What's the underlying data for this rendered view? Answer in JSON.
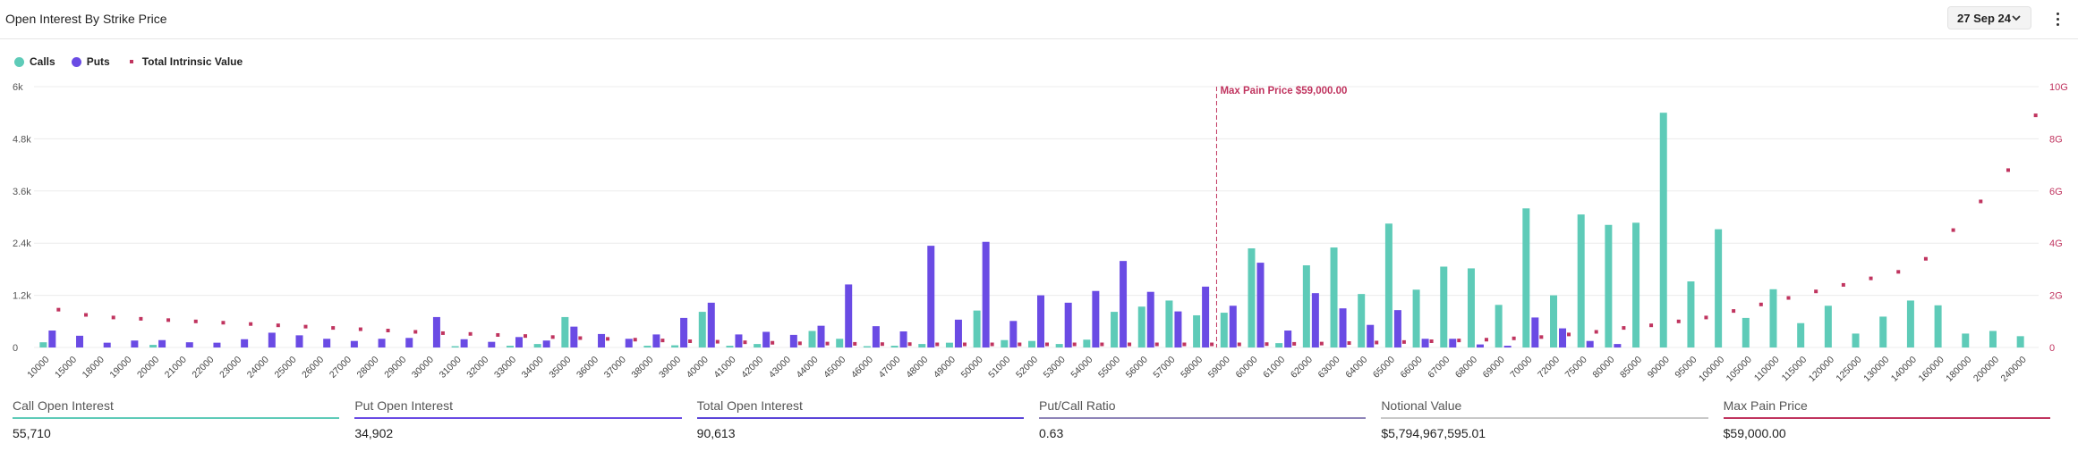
{
  "header": {
    "title": "Open Interest By Strike Price",
    "expiry": "27 Sep 24"
  },
  "legend": [
    {
      "label": "Calls",
      "color": "#5ecbb8",
      "shape": "circle"
    },
    {
      "label": "Puts",
      "color": "#6a4be4",
      "shape": "circle"
    },
    {
      "label": "Total Intrinsic Value",
      "color": "#c0345f",
      "shape": "square"
    }
  ],
  "stats": [
    {
      "label": "Call Open Interest",
      "value": "55,710",
      "color": "#5ecbb8"
    },
    {
      "label": "Put Open Interest",
      "value": "34,902",
      "color": "#6a4be4"
    },
    {
      "label": "Total Open Interest",
      "value": "90,613",
      "color": "#5b45d8"
    },
    {
      "label": "Put/Call Ratio",
      "value": "0.63",
      "color": "#8e84b8"
    },
    {
      "label": "Notional Value",
      "value": "$5,794,967,595.01",
      "color": "#c8c8c8"
    },
    {
      "label": "Max Pain Price",
      "value": "$59,000.00",
      "color": "#c0345f"
    }
  ],
  "chart_data": {
    "type": "bar",
    "categories": [
      "10000",
      "15000",
      "18000",
      "19000",
      "20000",
      "21000",
      "22000",
      "23000",
      "24000",
      "25000",
      "26000",
      "27000",
      "28000",
      "29000",
      "30000",
      "31000",
      "32000",
      "33000",
      "34000",
      "35000",
      "36000",
      "37000",
      "38000",
      "39000",
      "40000",
      "41000",
      "42000",
      "43000",
      "44000",
      "45000",
      "46000",
      "47000",
      "48000",
      "49000",
      "50000",
      "51000",
      "52000",
      "53000",
      "54000",
      "55000",
      "56000",
      "57000",
      "58000",
      "59000",
      "60000",
      "61000",
      "62000",
      "63000",
      "64000",
      "65000",
      "66000",
      "67000",
      "68000",
      "69000",
      "70000",
      "72000",
      "75000",
      "80000",
      "85000",
      "90000",
      "95000",
      "100000",
      "105000",
      "110000",
      "115000",
      "120000",
      "125000",
      "130000",
      "140000",
      "160000",
      "180000",
      "200000",
      "240000"
    ],
    "series": [
      {
        "name": "Calls",
        "axis": "left",
        "values": [
          120,
          0,
          0,
          0,
          60,
          0,
          0,
          0,
          0,
          0,
          0,
          0,
          0,
          0,
          0,
          30,
          0,
          40,
          80,
          700,
          0,
          0,
          40,
          50,
          820,
          40,
          80,
          0,
          380,
          200,
          30,
          40,
          80,
          110,
          850,
          170,
          150,
          80,
          180,
          820,
          940,
          1080,
          740,
          800,
          2280,
          100,
          1890,
          2300,
          1230,
          2850,
          1330,
          1860,
          1820,
          980,
          3200,
          1200,
          3060,
          2820,
          2870,
          5400,
          1520,
          2720,
          680,
          1340,
          560,
          960,
          320,
          710,
          1080,
          970,
          320,
          380,
          260
        ]
      },
      {
        "name": "Puts",
        "axis": "left",
        "values": [
          390,
          270,
          110,
          160,
          170,
          120,
          110,
          190,
          340,
          280,
          200,
          150,
          200,
          220,
          700,
          190,
          130,
          240,
          160,
          480,
          310,
          200,
          300,
          680,
          1030,
          300,
          360,
          290,
          500,
          1450,
          490,
          370,
          2340,
          640,
          2430,
          610,
          1200,
          1030,
          1300,
          1990,
          1280,
          830,
          1400,
          960,
          1950,
          390,
          1250,
          900,
          520,
          860,
          200,
          200,
          70,
          40,
          690,
          440,
          150,
          80,
          0,
          0,
          0,
          0,
          0,
          0,
          0,
          0,
          0,
          0,
          0,
          0,
          0,
          0,
          0
        ]
      },
      {
        "name": "Total Intrinsic Value",
        "axis": "right",
        "type": "scatter",
        "values": [
          1.45,
          1.25,
          1.15,
          1.1,
          1.05,
          1.0,
          0.95,
          0.9,
          0.85,
          0.8,
          0.75,
          0.7,
          0.65,
          0.6,
          0.55,
          0.52,
          0.48,
          0.44,
          0.4,
          0.36,
          0.33,
          0.3,
          0.27,
          0.24,
          0.22,
          0.2,
          0.18,
          0.16,
          0.15,
          0.14,
          0.13,
          0.13,
          0.12,
          0.12,
          0.12,
          0.12,
          0.12,
          0.12,
          0.12,
          0.12,
          0.12,
          0.12,
          0.12,
          0.12,
          0.13,
          0.14,
          0.15,
          0.17,
          0.19,
          0.21,
          0.24,
          0.27,
          0.3,
          0.35,
          0.4,
          0.5,
          0.6,
          0.75,
          0.85,
          1.0,
          1.15,
          1.4,
          1.65,
          1.9,
          2.15,
          2.4,
          2.65,
          2.9,
          3.4,
          4.5,
          5.6,
          6.8,
          8.9
        ]
      }
    ],
    "yleft": {
      "min": 0,
      "max": 6000,
      "ticks": [
        0,
        1200,
        2400,
        3600,
        4800,
        6000
      ],
      "tick_labels": [
        "0",
        "1.2k",
        "2.4k",
        "3.6k",
        "4.8k",
        "6k"
      ]
    },
    "yright": {
      "min": 0,
      "max": 10,
      "ticks": [
        0,
        2,
        4,
        6,
        8,
        10
      ],
      "tick_labels": [
        "0",
        "2G",
        "4G",
        "6G",
        "8G",
        "10G"
      ]
    },
    "annotation": {
      "label": "Max Pain Price $59,000.00",
      "category": "59000"
    },
    "grid": "horizontal"
  }
}
